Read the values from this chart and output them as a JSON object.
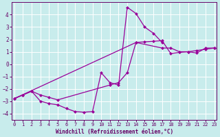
{
  "xlabel": "Windchill (Refroidissement éolien,°C)",
  "ylabel": "",
  "bg_color": "#c8ecec",
  "grid_color": "#ffffff",
  "line_color": "#990099",
  "marker": "D",
  "markersize": 2.5,
  "linewidth": 0.9,
  "xlim": [
    -0.3,
    23.3
  ],
  "ylim": [
    -4.5,
    5.0
  ],
  "yticks": [
    -4,
    -3,
    -2,
    -1,
    0,
    1,
    2,
    3,
    4
  ],
  "xticks": [
    0,
    1,
    2,
    3,
    4,
    5,
    6,
    7,
    8,
    9,
    10,
    11,
    12,
    13,
    14,
    15,
    16,
    17,
    18,
    19,
    20,
    21,
    22,
    23
  ],
  "series": [
    {
      "x": [
        0,
        1,
        2,
        3,
        4,
        5,
        6,
        7,
        8,
        9,
        10,
        11,
        12,
        13,
        14,
        15,
        16,
        17
      ],
      "y": [
        -2.8,
        -2.5,
        -2.2,
        -3.0,
        -3.2,
        -3.3,
        -3.6,
        -3.85,
        -3.9,
        -3.85,
        -0.7,
        -1.5,
        -1.7,
        4.6,
        4.1,
        3.0,
        2.5,
        1.75
      ]
    },
    {
      "x": [
        0,
        1,
        2,
        3,
        4,
        5,
        11,
        12,
        13,
        14,
        17,
        18,
        19,
        20,
        21,
        22,
        23
      ],
      "y": [
        -2.8,
        -2.5,
        -2.2,
        -2.5,
        -2.7,
        -2.9,
        -1.7,
        -1.5,
        -0.7,
        1.75,
        1.3,
        1.3,
        1.0,
        1.0,
        0.9,
        1.3,
        1.3
      ]
    },
    {
      "x": [
        0,
        14,
        15,
        16,
        17,
        18,
        19,
        20,
        21,
        22,
        23
      ],
      "y": [
        -2.8,
        1.75,
        1.8,
        1.85,
        1.9,
        0.85,
        0.95,
        1.0,
        1.1,
        1.2,
        1.3
      ]
    }
  ]
}
